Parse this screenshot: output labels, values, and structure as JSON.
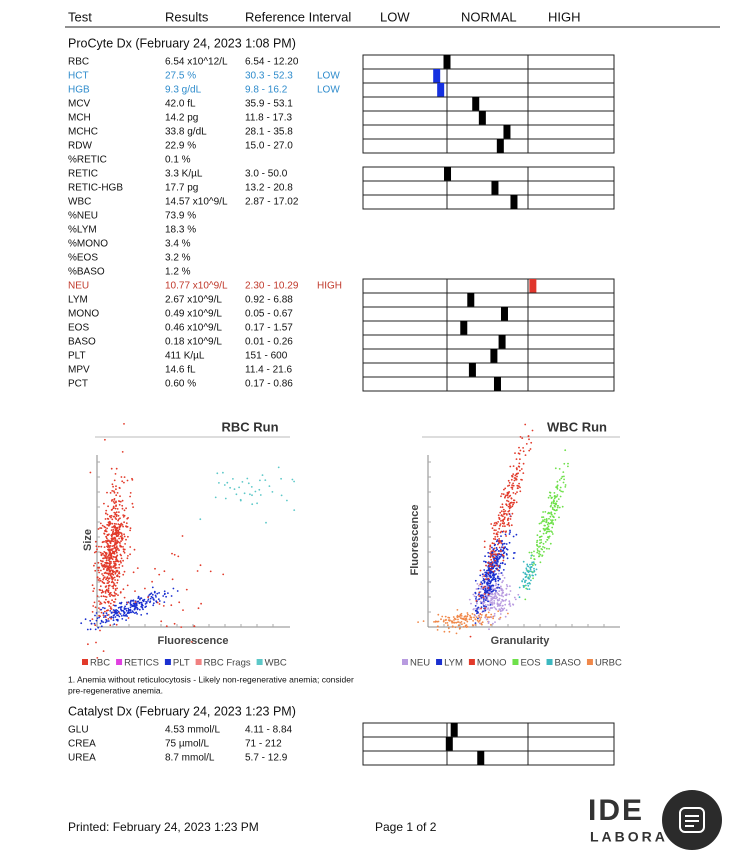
{
  "header": {
    "columns": [
      "Test",
      "Results",
      "Reference Interval",
      "LOW",
      "NORMAL",
      "HIGH"
    ]
  },
  "procyte": {
    "title": "ProCyte Dx (February 24, 2023 1:08 PM)",
    "rows": [
      {
        "test": "RBC",
        "result": "6.54 x10^12/L",
        "reference": "6.54 - 12.20"
      },
      {
        "test": "HCT",
        "result": "27.5 %",
        "reference": "30.3 - 52.3",
        "flag": "LOW"
      },
      {
        "test": "HGB",
        "result": "9.3 g/dL",
        "reference": "9.8 - 16.2",
        "flag": "LOW"
      },
      {
        "test": "MCV",
        "result": "42.0 fL",
        "reference": "35.9 - 53.1"
      },
      {
        "test": "MCH",
        "result": "14.2 pg",
        "reference": "11.8 - 17.3"
      },
      {
        "test": "MCHC",
        "result": "33.8 g/dL",
        "reference": "28.1 - 35.8"
      },
      {
        "test": "RDW",
        "result": "22.9 %",
        "reference": "15.0 - 27.0"
      },
      {
        "test": "%RETIC",
        "result": "0.1 %"
      },
      {
        "test": "RETIC",
        "result": "3.3 K/µL",
        "reference": "3.0 - 50.0"
      },
      {
        "test": "RETIC-HGB",
        "result": "17.7 pg",
        "reference": "13.2 - 20.8"
      },
      {
        "test": "WBC",
        "result": "14.57 x10^9/L",
        "reference": "2.87 - 17.02"
      },
      {
        "test": "%NEU",
        "result": "73.9 %"
      },
      {
        "test": "%LYM",
        "result": "18.3 %"
      },
      {
        "test": "%MONO",
        "result": "3.4 %"
      },
      {
        "test": "%EOS",
        "result": "3.2 %"
      },
      {
        "test": "%BASO",
        "result": "1.2 %"
      },
      {
        "test": "NEU",
        "result": "10.77 x10^9/L",
        "reference": "2.30 - 10.29",
        "flag": "HIGH"
      },
      {
        "test": "LYM",
        "result": "2.67 x10^9/L",
        "reference": "0.92 - 6.88"
      },
      {
        "test": "MONO",
        "result": "0.49 x10^9/L",
        "reference": "0.05 - 0.67"
      },
      {
        "test": "EOS",
        "result": "0.46 x10^9/L",
        "reference": "0.17 - 1.57"
      },
      {
        "test": "BASO",
        "result": "0.18 x10^9/L",
        "reference": "0.01 - 0.26"
      },
      {
        "test": "PLT",
        "result": "411 K/µL",
        "reference": "151 - 600"
      },
      {
        "test": "MPV",
        "result": "14.6 fL",
        "reference": "11.4 - 21.6"
      },
      {
        "test": "PCT",
        "result": "0.60 %",
        "reference": "0.17 - 0.86"
      }
    ]
  },
  "plots": [
    {
      "title": "RBC Run",
      "x_label": "Fluorescence",
      "y_label": "Size",
      "legend": [
        {
          "name": "RBC",
          "color": "#e23a2a"
        },
        {
          "name": "RETICS",
          "color": "#e040e0"
        },
        {
          "name": "PLT",
          "color": "#1a2fd0"
        },
        {
          "name": "RBC Frags",
          "color": "#f08080"
        },
        {
          "name": "WBC",
          "color": "#5cc8c8"
        }
      ]
    },
    {
      "title": "WBC Run",
      "x_label": "Granularity",
      "y_label": "Fluorescence",
      "legend": [
        {
          "name": "NEU",
          "color": "#b89be0"
        },
        {
          "name": "LYM",
          "color": "#1a2fd0"
        },
        {
          "name": "MONO",
          "color": "#e23a2a"
        },
        {
          "name": "EOS",
          "color": "#6ee04a"
        },
        {
          "name": "BASO",
          "color": "#3cb8c0"
        },
        {
          "name": "URBC",
          "color": "#f0884a"
        }
      ]
    }
  ],
  "note": [
    "1. Anemia without reticulocytosis - Likely non-regenerative anemia; consider",
    "pre-regenerative anemia."
  ],
  "catalyst": {
    "title": "Catalyst Dx (February 24, 2023 1:23 PM)",
    "rows": [
      {
        "test": "GLU",
        "result": "4.53 mmol/L",
        "reference": "4.11 - 8.84"
      },
      {
        "test": "CREA",
        "result": "75 µmol/L",
        "reference": "71 - 212"
      },
      {
        "test": "UREA",
        "result": "8.7 mmol/L",
        "reference": "5.7 - 12.9"
      }
    ]
  },
  "footer": {
    "printed": "Printed: February 24, 2023 1:23 PM",
    "page": "Page 1 of 2"
  },
  "logo": {
    "name": "IDE",
    "sub": "LABORA"
  }
}
